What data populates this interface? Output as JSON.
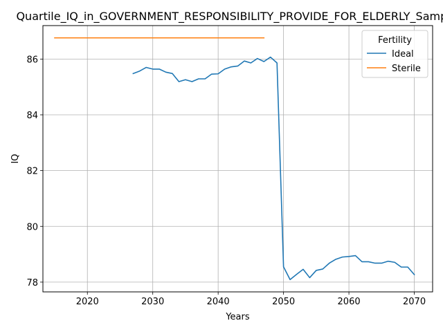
{
  "chart_data": {
    "type": "line",
    "title": "Quartile_IQ_in_GOVERNMENT_RESPONSIBILITY_PROVIDE_FOR_ELDERLY_Sample",
    "xlabel": "Years",
    "ylabel": "IQ",
    "xlim": [
      2013.2,
      2072.8
    ],
    "ylim": [
      77.65,
      87.2
    ],
    "xticks": [
      2020,
      2030,
      2040,
      2050,
      2060,
      2070
    ],
    "yticks": [
      78,
      80,
      82,
      84,
      86
    ],
    "grid": true,
    "legend": {
      "title": "Fertility",
      "placement": "top-right"
    },
    "series": [
      {
        "name": "Ideal",
        "color": "#1f77b4",
        "x": [
          2027,
          2028,
          2029,
          2030,
          2031,
          2032,
          2033,
          2034,
          2035,
          2036,
          2037,
          2038,
          2039,
          2040,
          2041,
          2042,
          2043,
          2044,
          2045,
          2046,
          2047,
          2048,
          2049,
          2050,
          2051,
          2052,
          2053,
          2054,
          2055,
          2056,
          2057,
          2058,
          2059,
          2060,
          2061,
          2062,
          2063,
          2064,
          2065,
          2066,
          2067,
          2068,
          2069,
          2070
        ],
        "y": [
          85.48,
          85.57,
          85.7,
          85.64,
          85.64,
          85.53,
          85.48,
          85.19,
          85.26,
          85.19,
          85.29,
          85.29,
          85.46,
          85.47,
          85.64,
          85.72,
          85.75,
          85.93,
          85.86,
          86.02,
          85.91,
          86.07,
          85.86,
          78.55,
          78.09,
          78.28,
          78.46,
          78.16,
          78.42,
          78.47,
          78.68,
          78.82,
          78.9,
          78.92,
          78.95,
          78.73,
          78.73,
          78.68,
          78.68,
          78.75,
          78.71,
          78.54,
          78.54,
          78.27
        ]
      },
      {
        "name": "Sterile",
        "color": "#ff7f0e",
        "x": [
          2015,
          2047
        ],
        "y": [
          86.76,
          86.76
        ]
      }
    ]
  }
}
